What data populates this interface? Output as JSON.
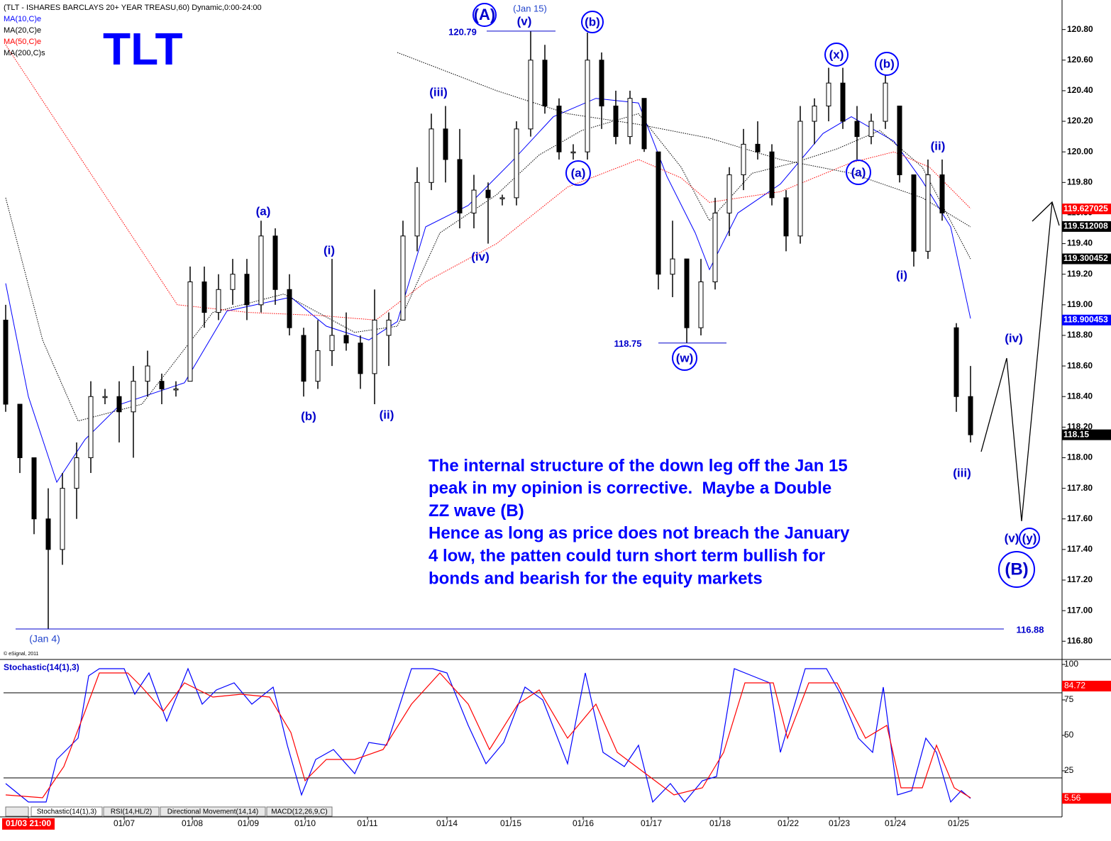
{
  "header": "(TLT - ISHARES BARCLAYS 20+ YEAR TREASU,60) Dynamic,0:00-24:00",
  "chart_data": [
    {
      "type": "candlestick",
      "title": "TLT",
      "x": [
        0,
        1,
        2,
        3,
        4,
        5,
        6,
        7,
        8,
        9,
        10,
        11,
        12,
        13,
        14,
        15,
        16,
        17,
        18,
        19,
        20,
        21,
        22,
        23,
        24,
        25,
        26,
        27,
        28,
        29,
        30,
        31,
        32,
        33,
        34,
        35,
        36,
        37,
        38,
        39,
        40,
        41,
        42,
        43,
        44,
        45,
        46,
        47,
        48,
        49,
        50,
        51,
        52,
        53,
        54,
        55,
        56,
        57,
        58,
        59,
        60,
        61,
        62,
        63,
        64,
        65,
        66,
        67,
        68
      ],
      "open": [
        118.9,
        118.35,
        118.0,
        117.6,
        117.4,
        117.8,
        118.0,
        118.4,
        118.4,
        118.3,
        118.5,
        118.5,
        118.45,
        118.5,
        119.15,
        118.95,
        119.1,
        119.2,
        119.0,
        119.45,
        119.1,
        118.8,
        118.5,
        118.7,
        118.8,
        118.75,
        118.55,
        118.8,
        118.9,
        119.45,
        119.8,
        120.15,
        119.95,
        119.6,
        119.75,
        119.7,
        119.7,
        120.15,
        120.6,
        120.3,
        120.0,
        120.0,
        120.6,
        120.3,
        120.1,
        120.35,
        120.0,
        119.2,
        119.3,
        118.85,
        119.15,
        119.6,
        119.85,
        120.05,
        120.0,
        119.7,
        119.45,
        120.2,
        120.3,
        120.45,
        120.2,
        120.1,
        120.2,
        120.3,
        119.85,
        119.35,
        119.85,
        118.85,
        118.4
      ],
      "high": [
        119.0,
        118.35,
        118.0,
        117.8,
        117.9,
        118.1,
        118.5,
        118.45,
        118.5,
        118.6,
        118.7,
        118.55,
        118.5,
        119.25,
        119.25,
        119.2,
        119.3,
        119.3,
        119.55,
        119.5,
        119.2,
        118.85,
        118.9,
        119.3,
        118.95,
        118.8,
        119.1,
        118.95,
        119.55,
        119.9,
        120.25,
        120.3,
        120.15,
        119.85,
        119.8,
        119.72,
        120.2,
        120.79,
        120.7,
        120.35,
        120.05,
        120.78,
        120.65,
        120.4,
        120.4,
        120.35,
        120.0,
        119.55,
        119.3,
        119.3,
        119.7,
        119.9,
        120.15,
        120.2,
        120.05,
        119.75,
        120.3,
        120.35,
        120.55,
        120.55,
        120.3,
        120.25,
        120.5,
        120.3,
        119.85,
        119.95,
        119.95,
        118.88,
        118.6
      ],
      "low": [
        118.3,
        117.9,
        117.5,
        116.88,
        117.3,
        117.6,
        117.9,
        118.35,
        118.1,
        118.0,
        118.4,
        118.35,
        118.4,
        118.5,
        118.85,
        118.9,
        119.0,
        118.9,
        118.95,
        119.0,
        118.8,
        118.4,
        118.45,
        118.6,
        118.7,
        118.45,
        118.35,
        118.6,
        118.9,
        119.35,
        119.75,
        119.8,
        119.5,
        119.5,
        119.4,
        119.65,
        119.65,
        120.1,
        120.25,
        119.95,
        119.95,
        119.95,
        120.15,
        120.05,
        120.05,
        120.0,
        119.1,
        119.05,
        118.75,
        118.8,
        119.1,
        119.45,
        119.75,
        119.95,
        119.65,
        119.35,
        119.4,
        120.05,
        120.2,
        120.15,
        119.95,
        120.05,
        120.15,
        119.8,
        119.25,
        119.3,
        119.55,
        118.3,
        118.1
      ],
      "close": [
        118.35,
        118.0,
        117.6,
        117.4,
        117.8,
        118.0,
        118.4,
        118.4,
        118.3,
        118.5,
        118.6,
        118.45,
        118.45,
        119.15,
        118.95,
        119.1,
        119.2,
        119.0,
        119.45,
        119.1,
        118.85,
        118.5,
        118.7,
        118.8,
        118.75,
        118.55,
        118.9,
        118.9,
        119.45,
        119.8,
        120.15,
        119.95,
        119.6,
        119.75,
        119.7,
        119.7,
        120.15,
        120.6,
        120.3,
        120.0,
        120.0,
        120.6,
        120.3,
        120.1,
        120.35,
        120.02,
        119.2,
        119.3,
        118.85,
        119.15,
        119.6,
        119.85,
        120.05,
        120.0,
        119.7,
        119.45,
        120.2,
        120.3,
        120.45,
        120.2,
        120.1,
        120.2,
        120.45,
        119.85,
        119.35,
        119.85,
        119.6,
        118.4,
        118.15
      ],
      "up_color": "#ffffff",
      "down_color": "#000000",
      "series": [
        {
          "name": "MA(10,C)e",
          "color": "#0000ff",
          "style": "solid",
          "x": [
            0,
            1.6,
            3.6,
            5.6,
            8.1,
            12.6,
            15.6,
            20.1,
            22.6,
            25.6,
            27.6,
            29.6,
            32.6,
            35.6,
            38.6,
            41.6,
            44.6,
            46.6,
            48.6,
            49.6,
            51.6,
            54.6,
            57.6,
            59.6,
            62.6,
            64.6,
            66.6,
            68
          ],
          "values": [
            119.14,
            118.4,
            117.84,
            118.12,
            118.35,
            118.49,
            118.96,
            119.05,
            118.86,
            118.77,
            118.89,
            119.51,
            119.65,
            119.93,
            120.23,
            120.35,
            120.32,
            119.84,
            119.47,
            119.23,
            119.6,
            119.79,
            120.12,
            120.23,
            120.07,
            119.81,
            119.51,
            118.91
          ]
        },
        {
          "name": "MA(20,C)e",
          "color": "#000000",
          "style": "dotted",
          "x": [
            0,
            2.6,
            5.1,
            9.6,
            14.6,
            19.6,
            24.6,
            27.6,
            30.6,
            34.6,
            37.6,
            40.6,
            44.6,
            47.6,
            49.6,
            52.6,
            55.6,
            58.6,
            61.6,
            64.6,
            68
          ],
          "values": [
            119.7,
            118.77,
            118.24,
            118.35,
            118.95,
            119.07,
            118.82,
            118.86,
            119.47,
            119.72,
            119.98,
            120.14,
            120.25,
            119.9,
            119.55,
            119.86,
            119.93,
            120.02,
            120.14,
            119.9,
            119.3
          ]
        },
        {
          "name": "MA(50,C)e",
          "color": "#ff0000",
          "style": "dotted",
          "x": [
            0,
            12.1,
            17.1,
            22.1,
            26.1,
            29.6,
            34.6,
            39.6,
            44.6,
            47.6,
            49.6,
            54.6,
            59.6,
            62.6,
            65.1,
            68
          ],
          "values": [
            120.7,
            119.0,
            118.95,
            118.93,
            118.9,
            119.15,
            119.4,
            119.77,
            119.95,
            119.83,
            119.67,
            119.74,
            119.93,
            120.0,
            119.9,
            119.63
          ]
        },
        {
          "name": "MA(200,C)s",
          "color": "#000000",
          "style": "dotted",
          "x": [
            27.6,
            34.6,
            39.6,
            44.6,
            49.6,
            54.6,
            59.6,
            64.6,
            68
          ],
          "values": [
            120.65,
            120.4,
            120.25,
            120.18,
            120.09,
            119.95,
            119.86,
            119.7,
            119.51
          ]
        }
      ],
      "xlim": [
        -0.15,
        74.35
      ],
      "ylim": [
        116.69,
        120.97
      ],
      "yticks": [
        {
          "value": 116.8,
          "label": "116.80"
        },
        {
          "value": 117.0,
          "label": "117.00"
        },
        {
          "value": 117.2,
          "label": "117.20"
        },
        {
          "value": 117.4,
          "label": "117.40"
        },
        {
          "value": 117.6,
          "label": "117.60"
        },
        {
          "value": 117.8,
          "label": "117.80"
        },
        {
          "value": 118.0,
          "label": "118.00"
        },
        {
          "value": 118.2,
          "label": "118.20"
        },
        {
          "value": 118.4,
          "label": "118.40"
        },
        {
          "value": 118.6,
          "label": "118.60"
        },
        {
          "value": 118.8,
          "label": "118.80"
        },
        {
          "value": 119.0,
          "label": "119.00"
        },
        {
          "value": 119.2,
          "label": "119.20"
        },
        {
          "value": 119.4,
          "label": "119.40"
        },
        {
          "value": 119.6,
          "label": "119.60"
        },
        {
          "value": 119.8,
          "label": "119.80"
        },
        {
          "value": 120.0,
          "label": "120.00"
        },
        {
          "value": 120.2,
          "label": "120.20"
        },
        {
          "value": 120.4,
          "label": "120.40"
        },
        {
          "value": 120.6,
          "label": "120.60"
        },
        {
          "value": 120.8,
          "label": "120.80"
        }
      ],
      "levels": [
        120.79,
        118.75,
        116.88
      ],
      "price_tags": [
        {
          "value": 119.627025,
          "color": "#ff0000"
        },
        {
          "value": 119.512008,
          "color": "#000000"
        },
        {
          "value": 119.300452,
          "color": "#000000"
        },
        {
          "value": 118.900453,
          "color": "#0000ff"
        },
        {
          "value": 118.15,
          "color": "#000000"
        }
      ],
      "annotations": [
        {
          "text": "(A)",
          "circled": true
        },
        {
          "text": "(Jan 15)"
        },
        {
          "text": "(v)"
        },
        {
          "text": "(b)",
          "circled": true
        },
        {
          "text": "(iii)"
        },
        {
          "text": "(a)"
        },
        {
          "text": "(i)"
        },
        {
          "text": "(b)"
        },
        {
          "text": "(ii)"
        },
        {
          "text": "(iv)"
        },
        {
          "text": "(a)",
          "circled": true
        },
        {
          "text": "(x)",
          "circled": true
        },
        {
          "text": "(b)",
          "circled": true
        },
        {
          "text": "(ii)"
        },
        {
          "text": "(a)",
          "circled": true
        },
        {
          "text": "(i)"
        },
        {
          "text": "(w)",
          "circled": true
        },
        {
          "text": "(iii)"
        },
        {
          "text": "(iv)"
        },
        {
          "text": "(v)"
        },
        {
          "text": "(y)",
          "circled": true
        },
        {
          "text": "(B)",
          "circled": true
        },
        {
          "text": "(Jan 4)"
        }
      ],
      "comment": [
        "The internal structure of the down leg off the Jan 15",
        "peak in my opinion is corrective.  Maybe a Double",
        "ZZ wave (B)",
        "Hence as long as price does not breach the January",
        "4 low, the patten could turn short term bullish for",
        "bonds and bearish for the equity markets"
      ],
      "credit": "© eSignal, 2011"
    },
    {
      "type": "line",
      "title": "Stochastic(14(1),3)",
      "series": [
        {
          "color": "#0000ff",
          "x": [
            0,
            1.6,
            2.85,
            3.6,
            5.1,
            5.85,
            6.6,
            8.35,
            9.1,
            10.1,
            11.35,
            12.85,
            13.85,
            14.85,
            16.1,
            17.35,
            18.85,
            19.85,
            20.85,
            21.85,
            23.1,
            24.6,
            25.6,
            26.85,
            28.6,
            30.1,
            31.1,
            32.6,
            33.85,
            35.1,
            36.6,
            37.85,
            39.6,
            40.85,
            42.1,
            43.6,
            44.6,
            45.6,
            46.85,
            47.85,
            49.1,
            50.1,
            51.35,
            52.6,
            53.85,
            54.6,
            56.35,
            57.85,
            58.85,
            60.1,
            61.1,
            61.85,
            62.85,
            63.85,
            64.85,
            65.6,
            66.6,
            67.35,
            68
          ],
          "values": [
            16,
            3,
            3,
            33,
            48,
            92,
            97,
            97,
            79,
            94,
            60,
            97,
            72,
            82,
            87,
            72,
            84,
            43,
            8,
            33,
            40,
            23,
            45,
            43,
            97,
            97,
            94,
            57,
            30,
            45,
            84,
            75,
            30,
            94,
            38,
            28,
            43,
            3,
            16,
            3,
            18,
            21,
            97,
            92,
            87,
            38,
            97,
            97,
            79,
            48,
            38,
            84,
            8,
            11,
            48,
            38,
            3,
            11,
            5.56
          ]
        },
        {
          "color": "#ff0000",
          "x": [
            0,
            2.6,
            4.1,
            5.6,
            6.6,
            8.6,
            9.6,
            11.1,
            12.6,
            14.6,
            16.6,
            18.6,
            20.1,
            21.1,
            22.6,
            24.6,
            26.6,
            28.6,
            30.6,
            32.6,
            34.1,
            36.1,
            37.6,
            39.6,
            41.6,
            43.1,
            45.1,
            47.1,
            49.1,
            50.6,
            52.1,
            54.1,
            55.1,
            56.6,
            58.6,
            60.6,
            62.1,
            63.1,
            64.6,
            65.6,
            66.85,
            68
          ],
          "values": [
            8,
            6,
            28,
            67,
            94,
            94,
            84,
            67,
            87,
            77,
            79,
            77,
            52,
            18,
            33,
            33,
            40,
            72,
            94,
            72,
            40,
            72,
            82,
            48,
            72,
            38,
            23,
            8,
            13,
            38,
            87,
            87,
            48,
            87,
            87,
            48,
            57,
            13,
            13,
            43,
            13,
            6
          ]
        }
      ],
      "xlim": [
        -0.15,
        74.35
      ],
      "ylim": [
        0,
        102
      ],
      "yticks": [
        25,
        50,
        75,
        100
      ],
      "levels": [
        20,
        80
      ],
      "price_tags": [
        {
          "value": 84.72,
          "color": "#ff0000"
        },
        {
          "value": 5.56,
          "color": "#ff0000"
        }
      ],
      "xticks": [
        {
          "value": 1.6,
          "label": "01/03 21:00"
        },
        {
          "value": 8.35,
          "label": "01/07"
        },
        {
          "value": 13.15,
          "label": "01/08"
        },
        {
          "value": 17.1,
          "label": "01/09"
        },
        {
          "value": 21.1,
          "label": "01/10"
        },
        {
          "value": 25.5,
          "label": "01/11"
        },
        {
          "value": 31.1,
          "label": "01/14"
        },
        {
          "value": 35.6,
          "label": "01/15"
        },
        {
          "value": 40.7,
          "label": "01/16"
        },
        {
          "value": 45.5,
          "label": "01/17"
        },
        {
          "value": 50.35,
          "label": "01/18"
        },
        {
          "value": 55.15,
          "label": "01/22"
        },
        {
          "value": 58.75,
          "label": "01/23"
        },
        {
          "value": 62.7,
          "label": "01/24"
        },
        {
          "value": 67.15,
          "label": "01/25"
        }
      ],
      "tabs": [
        "Stochastic(14(1),3)",
        "RSI(14,HL/2)",
        "Directional Movement(14,14)",
        "MACD(12,26,9,C)"
      ]
    }
  ]
}
